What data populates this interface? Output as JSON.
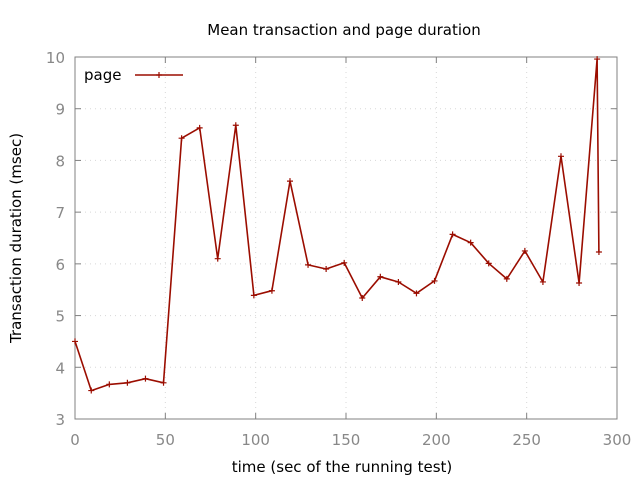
{
  "chart_data": {
    "type": "line",
    "title": "Mean transaction and page duration",
    "xlabel": "time (sec of the running test)",
    "ylabel": "Transaction duration (msec)",
    "xlim": [
      0,
      300
    ],
    "ylim": [
      3,
      10
    ],
    "xticks": [
      0,
      50,
      100,
      150,
      200,
      250,
      300
    ],
    "yticks": [
      3,
      4,
      5,
      6,
      7,
      8,
      9,
      10
    ],
    "grid": true,
    "legend_position": "top-left",
    "series": [
      {
        "name": "page",
        "color": "#9b0d00",
        "x": [
          0,
          9,
          19,
          29,
          39,
          49,
          59,
          69,
          79,
          89,
          99,
          109,
          119,
          129,
          139,
          149,
          159,
          169,
          179,
          189,
          199,
          209,
          219,
          229,
          239,
          249,
          259,
          269,
          279,
          289,
          290
        ],
        "y": [
          4.5,
          3.55,
          3.67,
          3.7,
          3.78,
          3.7,
          8.43,
          8.63,
          6.1,
          8.68,
          5.39,
          5.48,
          7.6,
          5.98,
          5.9,
          6.02,
          5.34,
          5.75,
          5.65,
          5.43,
          5.67,
          6.57,
          6.41,
          6.01,
          5.71,
          6.25,
          5.65,
          8.08,
          5.63,
          9.96,
          6.23
        ]
      }
    ]
  }
}
